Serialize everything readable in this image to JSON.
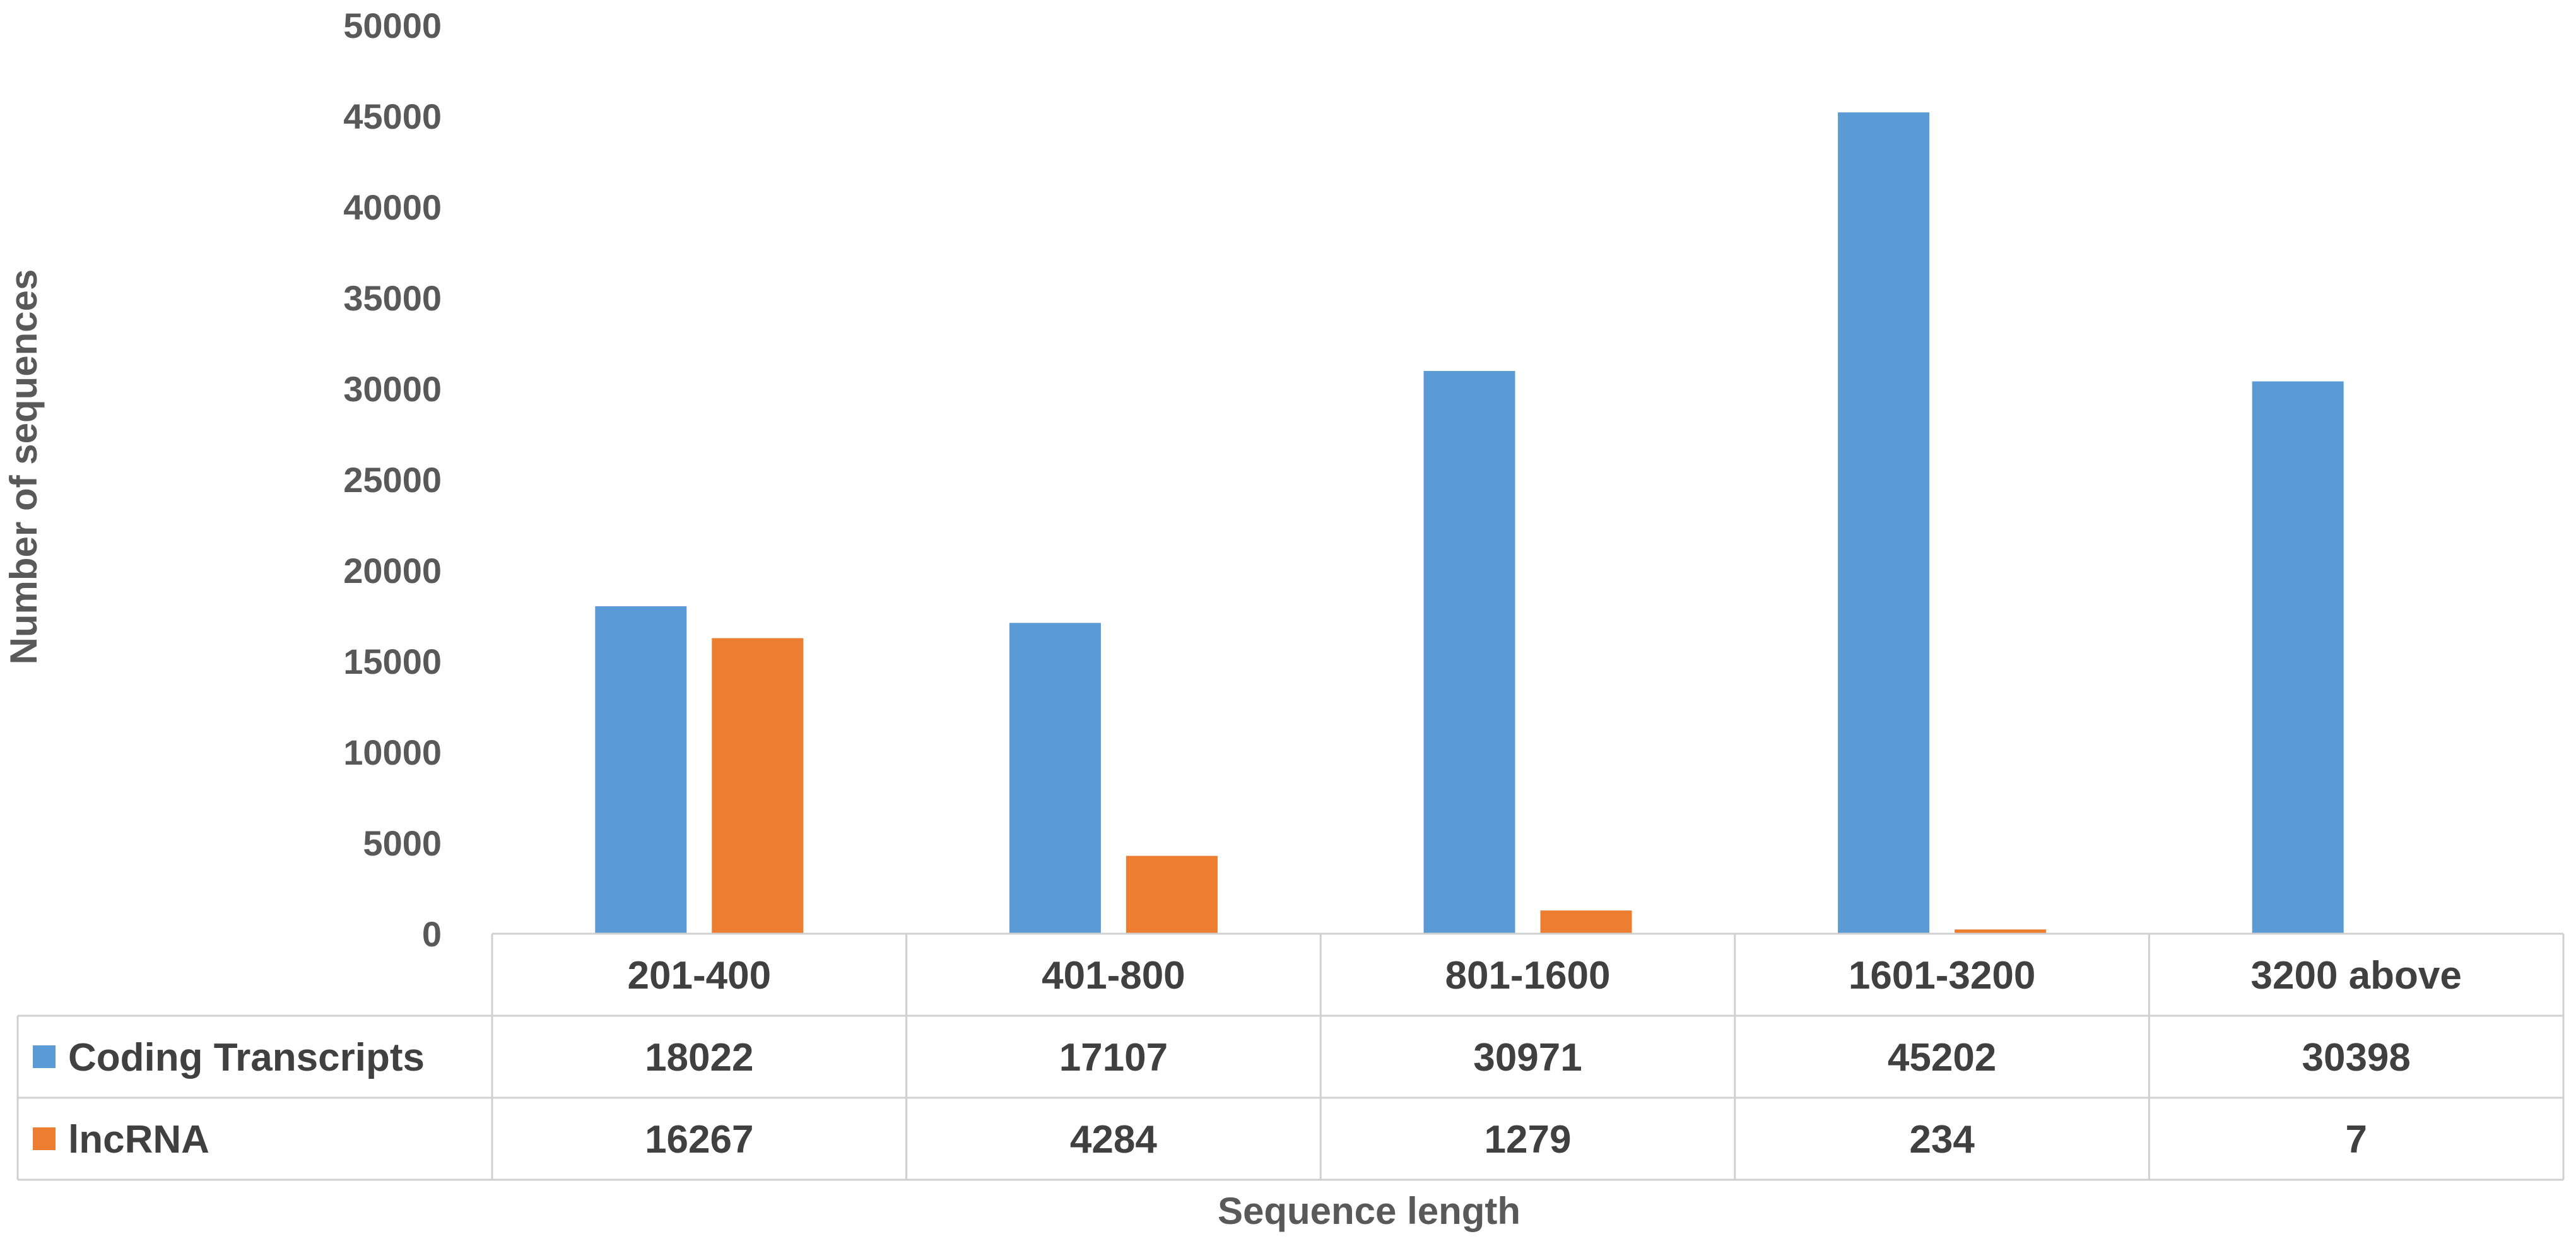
{
  "chart_data": {
    "type": "bar",
    "categories": [
      "201-400",
      "401-800",
      "801-1600",
      "1601-3200",
      "3200 above"
    ],
    "series": [
      {
        "name": "Coding Transcripts",
        "values": [
          18022,
          17107,
          30971,
          45202,
          30398
        ],
        "color": "#5B9BD5"
      },
      {
        "name": "lncRNA",
        "values": [
          16267,
          4284,
          1279,
          234,
          7
        ],
        "color": "#ED7D31"
      }
    ],
    "yticks": [
      "0",
      "5000",
      "10000",
      "15000",
      "20000",
      "25000",
      "30000",
      "35000",
      "40000",
      "45000",
      "50000"
    ],
    "ylim": [
      0,
      50000
    ],
    "xlabel": "Sequence length",
    "ylabel": "Number of sequences",
    "data_table": true,
    "grid": false,
    "value_labels": [
      "18022",
      "17107",
      "30971",
      "45202",
      "30398",
      "16267",
      "4284",
      "1279",
      "234",
      "7"
    ]
  }
}
